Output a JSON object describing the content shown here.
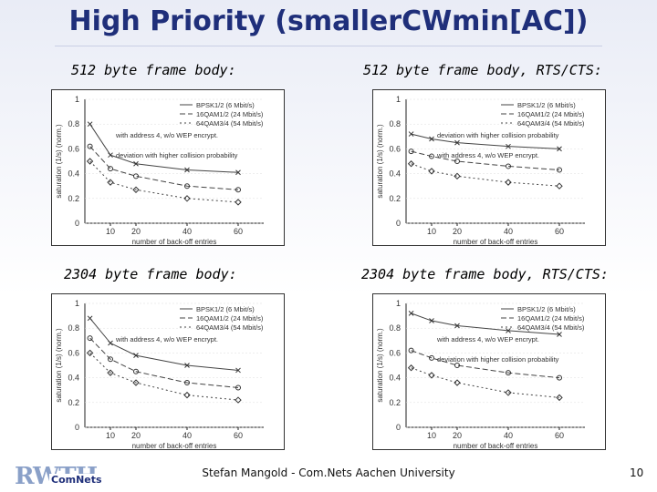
{
  "slide": {
    "title_part1": "High Priority (smaller ",
    "title_part2": "CWmin",
    "title_part3": "[AC])",
    "footer": "Stefan Mangold - Com.Nets Aachen University",
    "page_number": "10",
    "logo_text": "RWTH",
    "logo_sub": "ComNets"
  },
  "captions": [
    "512 byte frame body:",
    "512 byte frame body, RTS/CTS:",
    "2304 byte frame body:",
    "2304 byte frame body, RTS/CTS:"
  ],
  "chart_data": [
    {
      "type": "line",
      "xlabel": "number of back-off entries",
      "ylabel": "saturation (1/s) (norm.)",
      "x_ticks": [
        "10",
        "20",
        "40",
        "60"
      ],
      "y_ticks": [
        "0",
        "0.2",
        "0.4",
        "0.6",
        "0.8",
        "1"
      ],
      "xlim": [
        0,
        70
      ],
      "ylim": [
        0,
        1
      ],
      "legend": [
        "BPSK1/2 (6 Mbit/s)",
        "16QAM1/2 (24 Mbit/s)",
        "64QAM3/4 (54 Mbit/s)"
      ],
      "annotations": [
        "with address 4, w/o WEP encrypt.",
        "deviation with higher collision probability"
      ],
      "series": [
        {
          "name": "BPSK1/2 (6 Mbit/s)",
          "x": [
            2,
            10,
            20,
            40,
            60
          ],
          "y": [
            0.8,
            0.55,
            0.48,
            0.43,
            0.41
          ]
        },
        {
          "name": "16QAM1/2 (24 Mbit/s)",
          "x": [
            2,
            10,
            20,
            40,
            60
          ],
          "y": [
            0.62,
            0.44,
            0.38,
            0.3,
            0.27
          ]
        },
        {
          "name": "64QAM3/4 (54 Mbit/s)",
          "x": [
            2,
            10,
            20,
            40,
            60
          ],
          "y": [
            0.5,
            0.33,
            0.27,
            0.2,
            0.17
          ]
        }
      ]
    },
    {
      "type": "line",
      "xlabel": "number of back-off entries",
      "ylabel": "saturation (1/s) (norm.)",
      "x_ticks": [
        "10",
        "20",
        "40",
        "60"
      ],
      "y_ticks": [
        "0",
        "0.2",
        "0.4",
        "0.6",
        "0.8",
        "1"
      ],
      "xlim": [
        0,
        70
      ],
      "ylim": [
        0,
        1
      ],
      "legend": [
        "BPSK1/2 (6 Mbit/s)",
        "16QAM1/2 (24 Mbit/s)",
        "64QAM3/4 (54 Mbit/s)"
      ],
      "annotations": [
        "deviation with higher collision probability",
        "with address 4, w/o WEP encrypt."
      ],
      "series": [
        {
          "name": "BPSK1/2 (6 Mbit/s)",
          "x": [
            2,
            10,
            20,
            40,
            60
          ],
          "y": [
            0.72,
            0.68,
            0.65,
            0.62,
            0.6
          ]
        },
        {
          "name": "16QAM1/2 (24 Mbit/s)",
          "x": [
            2,
            10,
            20,
            40,
            60
          ],
          "y": [
            0.58,
            0.54,
            0.5,
            0.46,
            0.43
          ]
        },
        {
          "name": "64QAM3/4 (54 Mbit/s)",
          "x": [
            2,
            10,
            20,
            40,
            60
          ],
          "y": [
            0.48,
            0.42,
            0.38,
            0.33,
            0.3
          ]
        }
      ]
    },
    {
      "type": "line",
      "xlabel": "number of back-off entries",
      "ylabel": "saturation (1/s) (norm.)",
      "x_ticks": [
        "10",
        "20",
        "40",
        "60"
      ],
      "y_ticks": [
        "0",
        "0.2",
        "0.4",
        "0.6",
        "0.8",
        "1"
      ],
      "xlim": [
        0,
        70
      ],
      "ylim": [
        0,
        1
      ],
      "legend": [
        "BPSK1/2 (6 Mbit/s)",
        "16QAM1/2 (24 Mbit/s)",
        "64QAM3/4 (54 Mbit/s)"
      ],
      "annotations": [
        "with address 4, w/o WEP encrypt."
      ],
      "series": [
        {
          "name": "BPSK1/2 (6 Mbit/s)",
          "x": [
            2,
            10,
            20,
            40,
            60
          ],
          "y": [
            0.88,
            0.68,
            0.58,
            0.5,
            0.46
          ]
        },
        {
          "name": "16QAM1/2 (24 Mbit/s)",
          "x": [
            2,
            10,
            20,
            40,
            60
          ],
          "y": [
            0.72,
            0.55,
            0.45,
            0.36,
            0.32
          ]
        },
        {
          "name": "64QAM3/4 (54 Mbit/s)",
          "x": [
            2,
            10,
            20,
            40,
            60
          ],
          "y": [
            0.6,
            0.44,
            0.36,
            0.26,
            0.22
          ]
        }
      ]
    },
    {
      "type": "line",
      "xlabel": "number of back-off entries",
      "ylabel": "saturation (1/s) (norm.)",
      "x_ticks": [
        "10",
        "20",
        "40",
        "60"
      ],
      "y_ticks": [
        "0",
        "0.2",
        "0.4",
        "0.6",
        "0.8",
        "1"
      ],
      "xlim": [
        0,
        70
      ],
      "ylim": [
        0,
        1
      ],
      "legend": [
        "BPSK1/2 (6 Mbit/s)",
        "16QAM1/2 (24 Mbit/s)",
        "64QAM3/4 (54 Mbit/s)"
      ],
      "annotations": [
        "with address 4, w/o WEP encrypt.",
        "deviation with higher collision probability"
      ],
      "series": [
        {
          "name": "BPSK1/2 (6 Mbit/s)",
          "x": [
            2,
            10,
            20,
            40,
            60
          ],
          "y": [
            0.92,
            0.86,
            0.82,
            0.78,
            0.75
          ]
        },
        {
          "name": "16QAM1/2 (24 Mbit/s)",
          "x": [
            2,
            10,
            20,
            40,
            60
          ],
          "y": [
            0.62,
            0.56,
            0.5,
            0.44,
            0.4
          ]
        },
        {
          "name": "64QAM3/4 (54 Mbit/s)",
          "x": [
            2,
            10,
            20,
            40,
            60
          ],
          "y": [
            0.48,
            0.42,
            0.36,
            0.28,
            0.24
          ]
        }
      ]
    }
  ]
}
